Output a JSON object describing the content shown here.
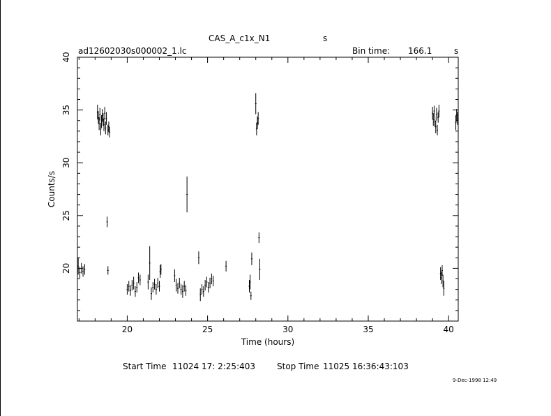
{
  "header": {
    "object_name": "CAS_A_c1x_N1",
    "object_unit": "s",
    "file_name": "ad12602030s000002_1.lc",
    "bin_time_label": "Bin time:",
    "bin_time_value": "166.1",
    "bin_time_unit": "s"
  },
  "footer": {
    "start_label": "Start Time",
    "start_value": "11024 17: 2:25:403",
    "stop_label": "Stop Time",
    "stop_value": "11025 16:36:43:103",
    "timestamp": "9-Dec-1998 12:49"
  },
  "chart_data": {
    "type": "scatter",
    "xlabel": "Time (hours)",
    "ylabel": "Counts/s",
    "xlim": [
      16.9,
      40.6
    ],
    "ylim": [
      15,
      40
    ],
    "x_ticks": [
      20,
      25,
      30,
      35,
      40
    ],
    "y_ticks": [
      20,
      25,
      30,
      35,
      40
    ],
    "grid": false,
    "error_bars": "vertical",
    "series": [
      {
        "x": [
          16.95,
          17.05,
          17.15,
          17.25,
          17.35,
          18.15,
          18.2,
          18.25,
          18.3,
          18.35,
          18.4,
          18.45,
          18.5,
          18.55,
          18.6,
          18.65,
          18.7,
          18.8,
          18.85,
          18.9,
          18.75,
          18.8,
          20.0,
          20.1,
          20.2,
          20.3,
          20.4,
          20.5,
          20.6,
          20.7,
          20.8,
          21.3,
          21.4,
          21.5,
          21.6,
          21.7,
          21.8,
          21.9,
          22.0,
          22.05,
          22.1,
          22.95,
          23.05,
          23.15,
          23.25,
          23.35,
          23.45,
          23.55,
          23.65,
          23.72,
          24.45,
          24.55,
          24.65,
          24.75,
          24.85,
          24.95,
          25.05,
          25.15,
          25.25,
          25.35,
          26.15,
          27.6,
          27.65,
          27.7,
          27.75,
          28.0,
          28.05,
          28.1,
          28.15,
          28.2,
          28.25,
          39.0,
          39.05,
          39.1,
          39.15,
          39.2,
          39.25,
          39.3,
          39.35,
          39.4,
          39.5,
          39.55,
          39.6,
          39.65,
          39.7,
          40.45,
          40.5,
          40.55
        ],
        "y": [
          20.2,
          19.6,
          20.0,
          19.7,
          19.9,
          34.8,
          34.3,
          33.7,
          34.6,
          33.2,
          33.9,
          34.5,
          34.1,
          33.6,
          34.7,
          33.3,
          34.2,
          33.1,
          33.4,
          32.9,
          24.4,
          19.8,
          18.0,
          18.3,
          17.9,
          18.4,
          18.6,
          17.8,
          18.2,
          19.1,
          18.9,
          18.7,
          20.5,
          17.6,
          18.2,
          18.5,
          18.0,
          18.6,
          18.3,
          19.7,
          19.9,
          19.3,
          18.4,
          18.1,
          18.6,
          18.0,
          17.8,
          18.3,
          17.9,
          27.0,
          21.0,
          17.5,
          18.0,
          17.8,
          18.4,
          18.7,
          18.2,
          18.6,
          19.0,
          18.8,
          20.2,
          18.3,
          18.7,
          17.4,
          20.9,
          35.6,
          33.2,
          33.8,
          34.2,
          22.9,
          19.9,
          34.7,
          34.1,
          34.9,
          33.9,
          33.4,
          34.6,
          33.1,
          34.3,
          34.9,
          19.5,
          19.1,
          19.8,
          18.8,
          18.1,
          33.8,
          34.5,
          34.2
        ],
        "yerr": [
          0.8,
          0.5,
          0.5,
          0.5,
          0.5,
          0.7,
          0.6,
          0.6,
          0.6,
          0.6,
          0.6,
          0.6,
          0.6,
          0.6,
          0.6,
          0.6,
          0.6,
          0.5,
          0.5,
          0.5,
          0.5,
          0.4,
          0.5,
          0.5,
          0.5,
          0.5,
          0.6,
          0.5,
          0.5,
          0.5,
          0.5,
          0.7,
          1.6,
          0.6,
          0.5,
          0.5,
          0.5,
          0.5,
          0.5,
          0.6,
          0.5,
          0.6,
          0.6,
          0.5,
          0.5,
          0.5,
          0.6,
          0.5,
          0.5,
          1.7,
          0.6,
          0.6,
          0.5,
          0.5,
          0.5,
          0.5,
          0.5,
          0.5,
          0.5,
          0.5,
          0.5,
          0.6,
          0.7,
          0.4,
          0.6,
          1.0,
          0.6,
          0.6,
          0.6,
          0.5,
          1.0,
          0.6,
          0.6,
          0.5,
          0.5,
          0.6,
          0.6,
          0.5,
          0.5,
          0.6,
          0.6,
          0.6,
          0.5,
          0.6,
          0.7,
          0.7,
          0.6,
          0.6
        ]
      }
    ]
  }
}
